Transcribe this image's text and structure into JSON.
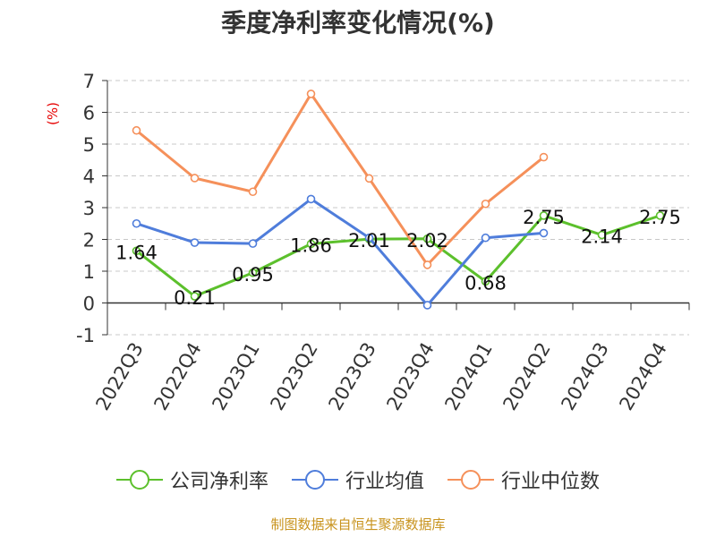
{
  "chart_data": {
    "type": "line",
    "title": "季度净利率变化情况(%)",
    "ylabel": "(%)",
    "categories": [
      "2022Q3",
      "2022Q4",
      "2023Q1",
      "2023Q2",
      "2023Q3",
      "2023Q4",
      "2024Q1",
      "2024Q2",
      "2024Q3",
      "2024Q4"
    ],
    "ylim": [
      -1,
      7
    ],
    "yticks": [
      7,
      6,
      5,
      4,
      3,
      2,
      1,
      0,
      -1
    ],
    "grid": true,
    "legend_position": "bottom",
    "series": [
      {
        "name": "公司净利率",
        "color": "#5cc02c",
        "values": [
          1.64,
          0.21,
          0.95,
          1.86,
          2.01,
          2.02,
          0.68,
          2.75,
          2.14,
          2.75
        ],
        "labels": [
          "1.64",
          "0.21",
          "0.95",
          "1.86",
          "2.01",
          "2.02",
          "0.68",
          "2.75",
          "2.14",
          "2.75"
        ]
      },
      {
        "name": "行业均值",
        "color": "#4f7ddb",
        "values": [
          2.5,
          1.9,
          1.87,
          3.27,
          2.05,
          -0.07,
          2.05,
          2.2,
          null,
          null
        ]
      },
      {
        "name": "行业中位数",
        "color": "#f5905a",
        "values": [
          5.43,
          3.93,
          3.5,
          6.58,
          3.92,
          1.2,
          3.12,
          4.59,
          null,
          null
        ]
      }
    ]
  },
  "footer": {
    "source": "制图数据来自恒生聚源数据库"
  }
}
